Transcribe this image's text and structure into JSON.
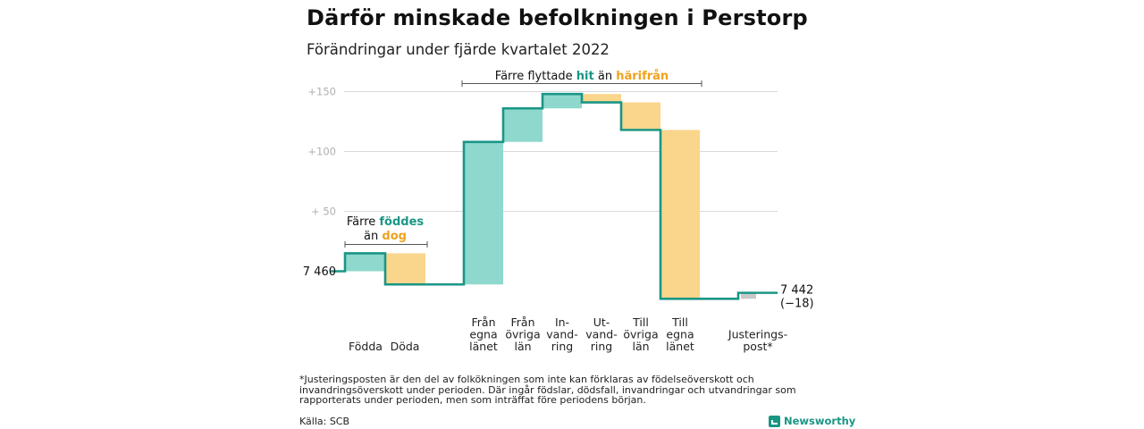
{
  "title": "Därför minskade befolkningen i Perstorp",
  "subtitle": "Förändringar under fjärde kvartalet 2022",
  "chart_data": {
    "type": "waterfall",
    "title": "Därför minskade befolkningen i Perstorp",
    "subtitle": "Förändringar under fjärde kvartalet 2022",
    "start_value": 7460,
    "start_label": "7 460",
    "end_value": 7442,
    "end_label": "7 442",
    "end_change_label": "(−18)",
    "y_ticks": [
      {
        "value": 150,
        "label": "+150"
      },
      {
        "value": 100,
        "label": "+100"
      },
      {
        "value": 50,
        "label": "+ 50"
      }
    ],
    "ylim": [
      -17,
      162
    ],
    "grid": true,
    "steps": [
      {
        "label": [
          "Födda"
        ],
        "delta": 15,
        "from": 0,
        "to": 15,
        "color": "#8fd8cd"
      },
      {
        "label": [
          "Döda"
        ],
        "delta": -26,
        "from": 15,
        "to": -11,
        "color": "#fad58c"
      },
      {
        "label": [
          "Från",
          "egna",
          "länet"
        ],
        "delta": 119,
        "from": -11,
        "to": 108,
        "color": "#8fd8cd"
      },
      {
        "label": [
          "Från",
          "övriga",
          "län"
        ],
        "delta": 28,
        "from": 108,
        "to": 136,
        "color": "#8fd8cd"
      },
      {
        "label": [
          "In-",
          "vand-",
          "ring"
        ],
        "delta": 12,
        "from": 136,
        "to": 148,
        "color": "#8fd8cd"
      },
      {
        "label": [
          "Ut-",
          "vand-",
          "ring"
        ],
        "delta": -7,
        "from": 148,
        "to": 141,
        "color": "#fad58c"
      },
      {
        "label": [
          "Till",
          "övriga",
          "län"
        ],
        "delta": -23,
        "from": 141,
        "to": 118,
        "color": "#fad58c"
      },
      {
        "label": [
          "Till",
          "egna",
          "länet"
        ],
        "delta": -141,
        "from": 118,
        "to": -23,
        "color": "#fad58c"
      },
      {
        "label": [
          "Justerings-",
          "post*"
        ],
        "delta": 5,
        "from": -23,
        "to": -18,
        "color": "#c8c8c8"
      }
    ],
    "annotations": [
      {
        "parts": [
          {
            "text": "Färre ",
            "style": "plain"
          },
          {
            "text": "föddes",
            "style": "teal"
          }
        ],
        "parts2": [
          {
            "text": "än ",
            "style": "plain"
          },
          {
            "text": "dog",
            "style": "orange"
          }
        ]
      },
      {
        "parts": [
          {
            "text": "Färre flyttade ",
            "style": "plain"
          },
          {
            "text": "hit",
            "style": "teal"
          },
          {
            "text": " än ",
            "style": "plain"
          },
          {
            "text": "härifrån",
            "style": "orange"
          }
        ]
      }
    ],
    "colors": {
      "line": "#1a9685",
      "increase": "#8fd8cd",
      "decrease": "#fad58c",
      "adjustment": "#c8c8c8"
    }
  },
  "footnote": "*Justeringsposten är den del av folkökningen som inte kan förklaras av födelseöverskott och invandringsöverskott under perioden. Där ingår födslar, dödsfall, invandringar och utvandringar som rapporterats under perioden, men som inträffat före periodens början.",
  "source": "Källa: SCB",
  "brand": "Newsworthy"
}
